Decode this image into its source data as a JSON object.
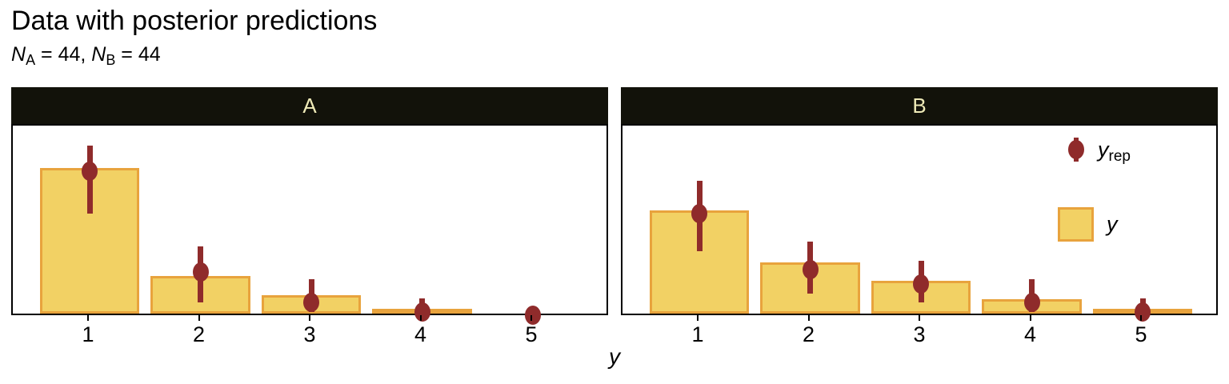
{
  "title": "Data with posterior predictions",
  "subtitle": {
    "var_a": "N",
    "sub_a": "A",
    "eq_a": " = 44, ",
    "var_b": "N",
    "sub_b": "B",
    "eq_b": " = 44"
  },
  "xlabel": "y",
  "legend": {
    "yrep_main": "y",
    "yrep_sub": "rep",
    "y_main": "y"
  },
  "colors": {
    "background": "#FFFFFF",
    "text": "#000000",
    "bar_fill": "#F2D164",
    "bar_border": "#E8A33D",
    "point": "#8F2B2B",
    "strip_bg": "#12120A",
    "strip_text": "#EFEBB8",
    "panel_border": "#000000"
  },
  "chart_data": {
    "type": "bar",
    "title": "Data with posterior predictions",
    "subtitle": "N_A = 44, N_B = 44",
    "xlabel": "y",
    "ylabel": "",
    "categories": [
      "1",
      "2",
      "3",
      "4",
      "5"
    ],
    "ylim": [
      0,
      40.8
    ],
    "grid": false,
    "legend_entries": [
      "y_rep",
      "y"
    ],
    "legend_position": "inside-top-right-of-panel-B",
    "facets": [
      {
        "label": "A",
        "N": 44,
        "bar_counts": [
          31,
          8,
          4,
          1,
          0
        ],
        "yrep_median": [
          31,
          9.5,
          3,
          1,
          0.3
        ],
        "yrep_lower": [
          22,
          3,
          1,
          0,
          0
        ],
        "yrep_upper": [
          36.5,
          15,
          8,
          4,
          1.2
        ]
      },
      {
        "label": "B",
        "N": 44,
        "bar_counts": [
          22,
          11,
          7,
          3,
          1
        ],
        "yrep_median": [
          22,
          10,
          7,
          3,
          1
        ],
        "yrep_lower": [
          14,
          5,
          3,
          1,
          0
        ],
        "yrep_upper": [
          29,
          16,
          12,
          8,
          4
        ]
      }
    ]
  }
}
